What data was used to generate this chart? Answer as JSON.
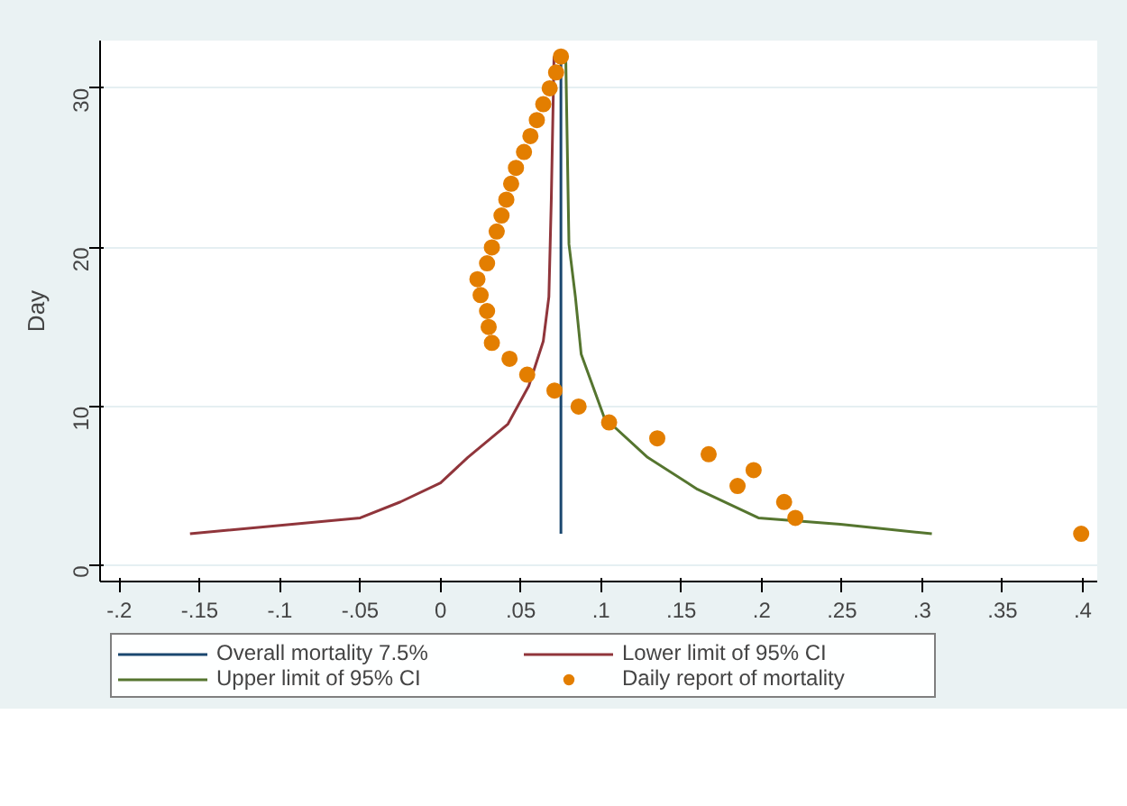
{
  "chart_data": {
    "type": "line",
    "ylabel": "Day",
    "xlim": [
      -0.212,
      0.409
    ],
    "ylim": [
      -1,
      33
    ],
    "xticks": [
      {
        "value": -0.2,
        "label": "-.2"
      },
      {
        "value": -0.15,
        "label": "-.15"
      },
      {
        "value": -0.1,
        "label": "-.1"
      },
      {
        "value": -0.05,
        "label": "-.05"
      },
      {
        "value": 0,
        "label": "0"
      },
      {
        "value": 0.05,
        "label": ".05"
      },
      {
        "value": 0.1,
        "label": ".1"
      },
      {
        "value": 0.15,
        "label": ".15"
      },
      {
        "value": 0.2,
        "label": ".2"
      },
      {
        "value": 0.25,
        "label": ".25"
      },
      {
        "value": 0.3,
        "label": ".3"
      },
      {
        "value": 0.35,
        "label": ".35"
      },
      {
        "value": 0.4,
        "label": ".4"
      }
    ],
    "yticks": [
      0,
      10,
      20,
      30
    ],
    "grid": "y",
    "legend": "bottom",
    "line_style": "solid",
    "series": [
      {
        "name": "Overall mortality 7.5%",
        "color": "#1a476f",
        "x": [
          0.075,
          0.075
        ],
        "values": [
          2,
          32
        ]
      },
      {
        "name": "Lower limit of 95% CI",
        "color": "#90353b",
        "x": [
          -0.156,
          -0.05,
          -0.025,
          0,
          0.017,
          0.042,
          0.055,
          0.064,
          0.0675,
          0.069,
          0.0707
        ],
        "values": [
          2,
          3,
          4,
          5.2,
          6.8,
          8.9,
          11.3,
          14.1,
          16.9,
          23,
          32
        ]
      },
      {
        "name": "Upper limit of 95% CI",
        "color": "#55752f",
        "x": [
          0.078,
          0.08,
          0.084,
          0.0876,
          0.102,
          0.129,
          0.16,
          0.198,
          0.249,
          0.306
        ],
        "values": [
          32,
          20.2,
          16.9,
          13.3,
          9.3,
          6.8,
          4.8,
          3,
          2.6,
          2
        ]
      },
      {
        "name": "Daily report of mortality",
        "type": "scatter",
        "marker": "circle",
        "color": "#e37e00",
        "x": [
          0.075,
          0.072,
          0.068,
          0.064,
          0.06,
          0.056,
          0.052,
          0.047,
          0.044,
          0.041,
          0.038,
          0.035,
          0.032,
          0.029,
          0.023,
          0.025,
          0.029,
          0.03,
          0.032,
          0.043,
          0.054,
          0.071,
          0.086,
          0.105,
          0.135,
          0.167,
          0.195,
          0.185,
          0.214,
          0.221,
          0.399
        ],
        "values": [
          32,
          31,
          30,
          29,
          28,
          27,
          26,
          25,
          24,
          23,
          22,
          21,
          20,
          19,
          18,
          17,
          16,
          15,
          14,
          13,
          12,
          11,
          10,
          9,
          8,
          7,
          6,
          5,
          4,
          3,
          2
        ]
      }
    ]
  }
}
